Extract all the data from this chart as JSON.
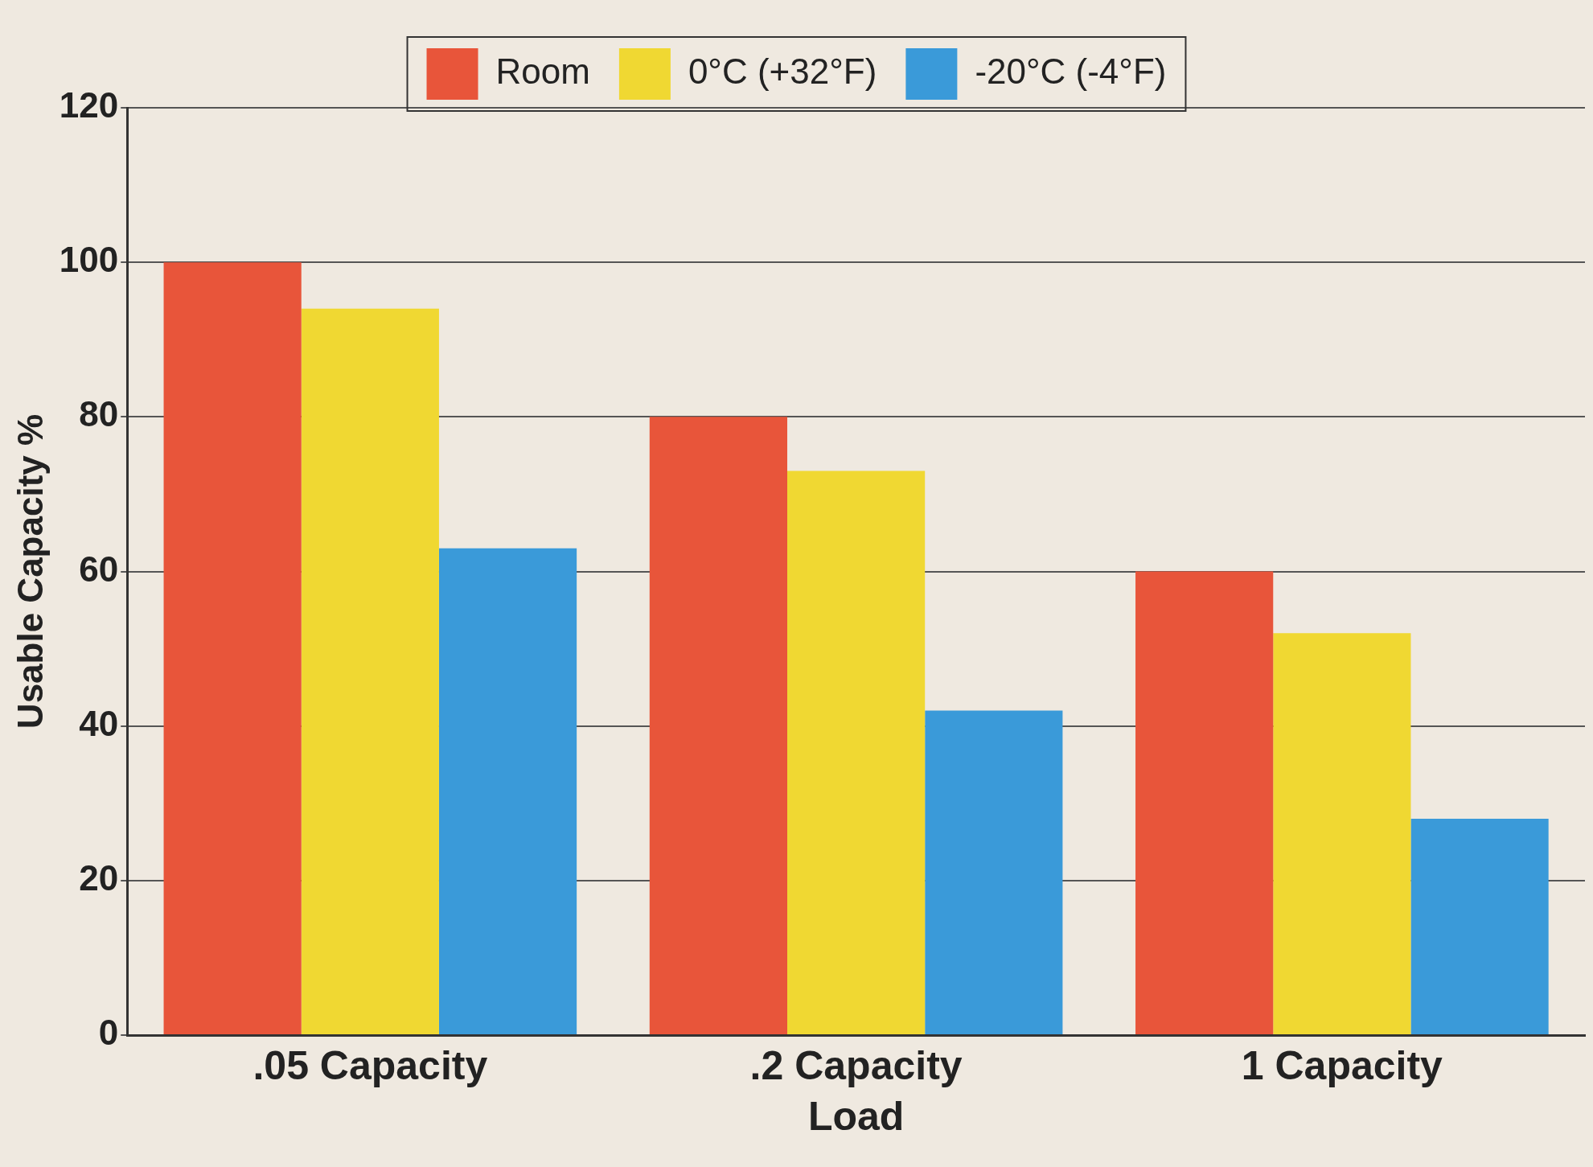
{
  "chart_data": {
    "type": "bar",
    "xlabel": "Load",
    "ylabel": "Usable Capacity %",
    "categories": [
      ".05 Capacity",
      ".2 Capacity",
      "1 Capacity"
    ],
    "series": [
      {
        "name": "Room",
        "color": "#e8553a",
        "values": [
          100,
          80,
          60
        ]
      },
      {
        "name": "0°C (+32°F)",
        "color": "#f0d832",
        "values": [
          94,
          73,
          52
        ]
      },
      {
        "name": "-20°C (-4°F)",
        "color": "#3a9ad9",
        "values": [
          63,
          42,
          28
        ]
      }
    ],
    "ylim": [
      0,
      120
    ],
    "yticks": [
      0,
      20,
      40,
      60,
      80,
      100,
      120
    ],
    "grid": "y",
    "legend": "top"
  }
}
